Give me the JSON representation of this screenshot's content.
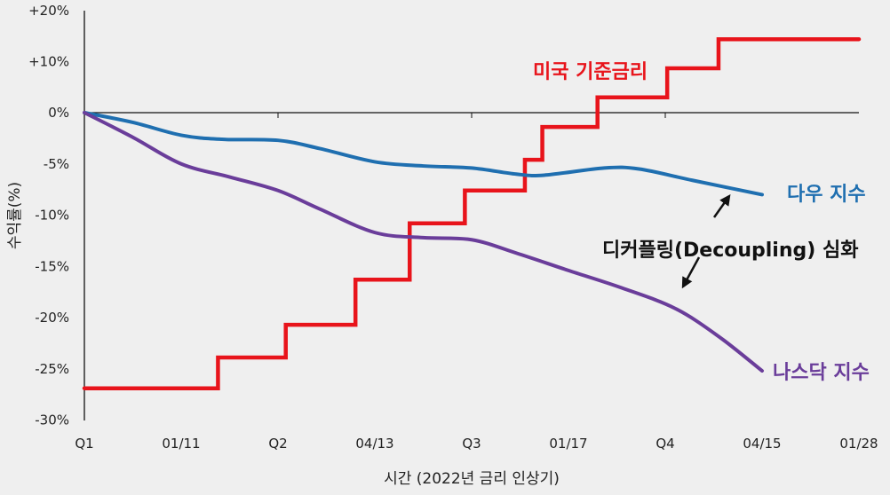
{
  "chart_data": {
    "type": "line",
    "title": "",
    "xlabel": "시간 (2022년 금리 인상기)",
    "ylabel": "수익률(%)",
    "x_ticks": [
      "Q1",
      "01/11",
      "Q2",
      "04/13",
      "Q3",
      "01/17",
      "Q4",
      "04/15",
      "01/28"
    ],
    "y_ticks": [
      "+20%",
      "+10%",
      "0%",
      "-5%",
      "-10%",
      "-15%",
      "-20%",
      "-25%",
      "-30%"
    ],
    "y_tick_values": [
      20,
      10,
      0,
      -5,
      -10,
      -15,
      -20,
      -25,
      -30
    ],
    "ylim": [
      -30,
      20
    ],
    "grid": false,
    "series": [
      {
        "name": "미국 기준금리",
        "color": "#e8141b",
        "style": "step",
        "x": [
          0,
          1.38,
          2.08,
          2.8,
          3.36,
          3.93,
          4.55,
          4.73,
          5.3,
          6.02,
          6.55,
          8
        ],
        "y": [
          -26.9,
          -23.9,
          -20.7,
          -16.3,
          -10.8,
          -7.6,
          -4.6,
          -1.4,
          3.0,
          8.7,
          14.4,
          14.4
        ]
      },
      {
        "name": "다우 지수",
        "color": "#1f6fb0",
        "style": "smooth",
        "x": [
          0,
          0.5,
          1,
          1.42,
          2,
          2.43,
          3,
          3.5,
          4,
          4.46,
          4.75,
          5.37,
          5.73,
          6.28,
          7
        ],
        "y": [
          0,
          -0.95,
          -2.2,
          -2.6,
          -2.7,
          -3.5,
          -4.8,
          -5.2,
          -5.4,
          -6.0,
          -6.1,
          -5.4,
          -5.5,
          -6.6,
          -8.0
        ]
      },
      {
        "name": "나스닥 지수",
        "color": "#6a3d9a",
        "style": "smooth",
        "x": [
          0,
          0.5,
          1,
          1.51,
          2,
          2.43,
          3,
          3.5,
          4,
          4.46,
          5,
          5.55,
          6.1,
          6.56,
          7
        ],
        "y": [
          0,
          -2.4,
          -5.0,
          -6.3,
          -7.6,
          -9.4,
          -11.7,
          -12.2,
          -12.4,
          -13.7,
          -15.4,
          -17.1,
          -19.1,
          -21.9,
          -25.2
        ]
      }
    ],
    "annotations": [
      {
        "text": "디커플링(Decoupling) 심화",
        "color": "#111111"
      }
    ]
  }
}
